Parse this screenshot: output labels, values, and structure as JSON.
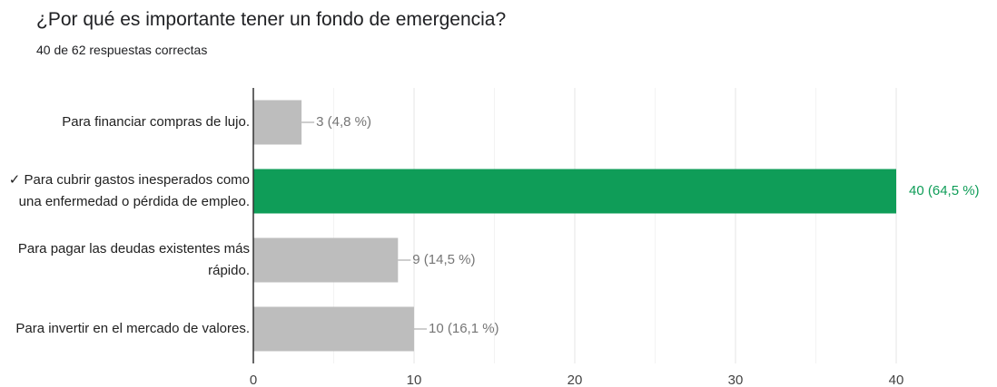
{
  "chart_data": {
    "type": "hbar",
    "title": "¿Por qué es importante tener un fondo de emergencia?",
    "subtitle": "40 de 62 respuestas correctas",
    "categories": [
      "Para financiar compras de lujo.",
      "✓ Para cubrir gastos inesperados como una enfermedad o pérdida de empleo.",
      "Para pagar las deudas existentes más rápido.",
      "Para invertir en el mercado de valores."
    ],
    "values": [
      3,
      40,
      9,
      10
    ],
    "value_labels": [
      "3 (4,8 %)",
      "40 (64,5 %)",
      "9 (14,5 %)",
      "10 (16,1 %)"
    ],
    "colors": [
      "#bdbdbd",
      "#0f9d58",
      "#bdbdbd",
      "#bdbdbd"
    ],
    "label_colors": [
      "#757575",
      "#0f9d58",
      "#757575",
      "#757575"
    ],
    "xlim": [
      0,
      40
    ],
    "xticks": [
      0,
      10,
      20,
      30,
      40
    ],
    "x_minor_ticks": [
      5,
      15,
      25,
      35
    ],
    "grid": true
  }
}
